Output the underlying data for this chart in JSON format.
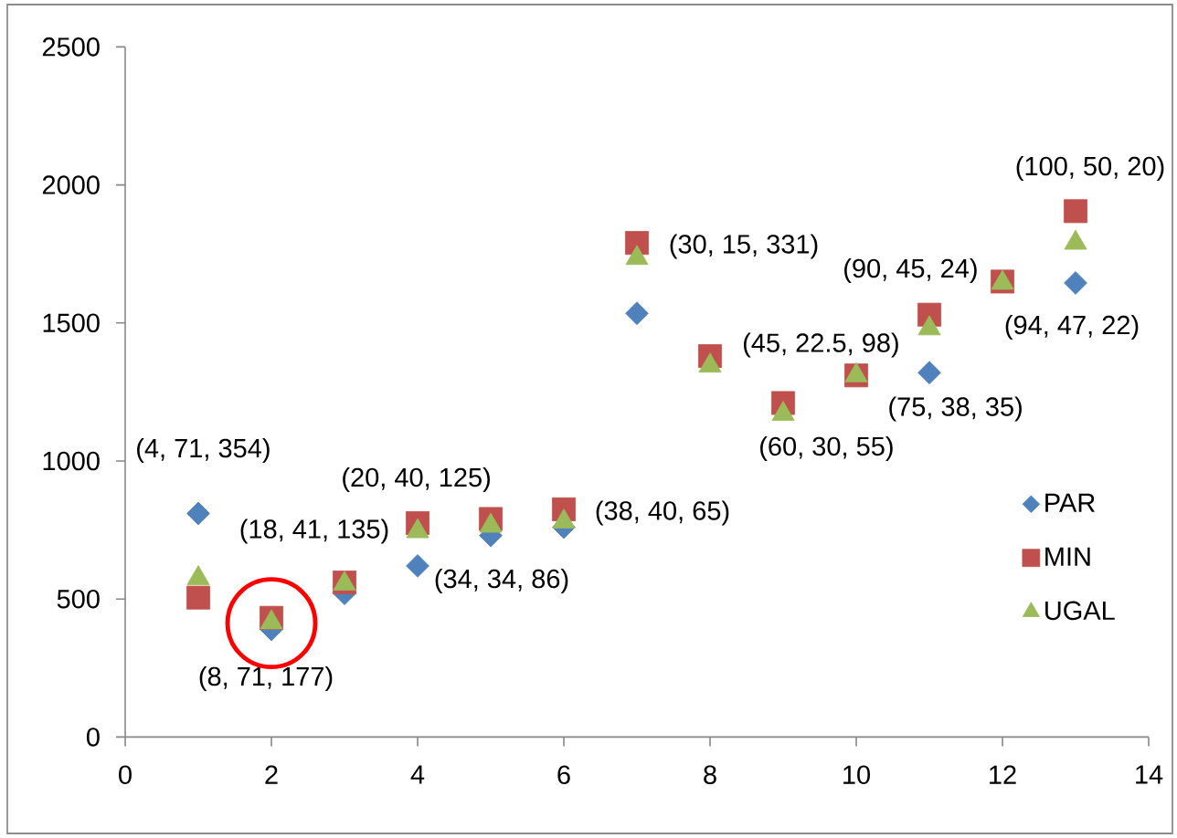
{
  "chart_data": {
    "type": "scatter",
    "xlim": [
      0,
      14
    ],
    "xticks": [
      0,
      2,
      4,
      6,
      8,
      10,
      12,
      14
    ],
    "ylim": [
      0,
      2500
    ],
    "yticks": [
      0,
      500,
      1000,
      1500,
      2000,
      2500
    ],
    "legend": "bottom right",
    "x": [
      1,
      2,
      3,
      4,
      5,
      6,
      7,
      8,
      9,
      10,
      11,
      12,
      13
    ],
    "series": [
      {
        "name": "PAR",
        "color": "#4f81bd",
        "marker": "diamond",
        "values": [
          810,
          390,
          520,
          620,
          730,
          760,
          1535,
          null,
          null,
          null,
          1320,
          null,
          1645
        ]
      },
      {
        "name": "MIN",
        "color": "#c0504d",
        "marker": "square",
        "values": [
          505,
          432,
          560,
          775,
          790,
          825,
          1790,
          1380,
          1210,
          1310,
          1530,
          1650,
          1905
        ]
      },
      {
        "name": "UGAL",
        "color": "#9bbb59",
        "marker": "triangle",
        "values": [
          575,
          415,
          555,
          745,
          765,
          780,
          1735,
          1345,
          1170,
          1310,
          1480,
          1645,
          1790
        ]
      }
    ],
    "annotations": [
      {
        "text": "(4, 71, 354)",
        "x": 1,
        "y": 810
      },
      {
        "text": "(8, 71, 177)",
        "x": 2,
        "y": 390
      },
      {
        "text": "(18, 41, 135)",
        "x": 3,
        "y": 560
      },
      {
        "text": "(20, 40, 125)",
        "x": 4,
        "y": 775
      },
      {
        "text": "(34, 34, 86)",
        "x": 4,
        "y": 620
      },
      {
        "text": "(38, 40, 65)",
        "x": 6,
        "y": 825
      },
      {
        "text": "(30, 15, 331)",
        "x": 7,
        "y": 1790
      },
      {
        "text": "(45, 22.5, 98)",
        "x": 8,
        "y": 1380
      },
      {
        "text": "(60, 30, 55)",
        "x": 9,
        "y": 1170
      },
      {
        "text": "(75, 38, 35)",
        "x": 10,
        "y": 1310
      },
      {
        "text": "(90, 45, 24)",
        "x": 11,
        "y": 1530
      },
      {
        "text": "(94, 47, 22)",
        "x": 13,
        "y": 1645
      },
      {
        "text": "(100, 50, 20)",
        "x": 13,
        "y": 1905
      }
    ]
  }
}
